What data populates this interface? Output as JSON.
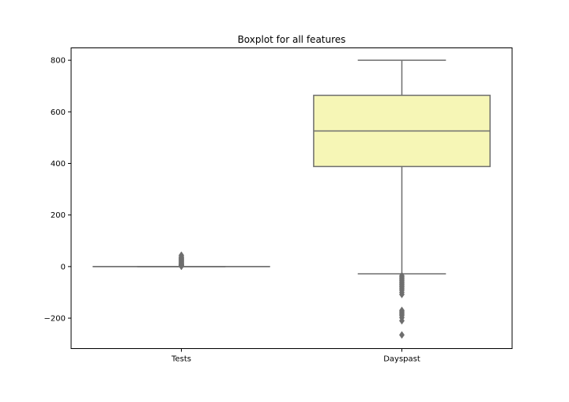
{
  "chart_data": {
    "type": "boxplot",
    "title": "Boxplot for all features",
    "xlabel": "",
    "ylabel": "",
    "categories": [
      "Tests",
      "Dayspast"
    ],
    "ylim": [
      -318,
      848
    ],
    "y_ticks": [
      -200,
      0,
      200,
      400,
      600,
      800
    ],
    "y_tick_labels": [
      "−200",
      "0",
      "200",
      "400",
      "600",
      "800"
    ],
    "grid": false,
    "boxes": [
      {
        "category": "Tests",
        "color": "#fbb4ae",
        "whisker_low": 0,
        "q1": 0,
        "median": 0,
        "q3": 0,
        "whisker_high": 0,
        "outliers": [
          1,
          2,
          3,
          4,
          5,
          6,
          7,
          8,
          9,
          10,
          12,
          14,
          16,
          18,
          20,
          22,
          24,
          26,
          28,
          30,
          32,
          34,
          36,
          40,
          44
        ]
      },
      {
        "category": "Dayspast",
        "color": "#f6f6b6",
        "whisker_low": -28,
        "q1": 388,
        "median": 526,
        "q3": 664,
        "whisker_high": 800,
        "outliers": [
          -35,
          -40,
          -45,
          -50,
          -55,
          -60,
          -65,
          -70,
          -75,
          -80,
          -86,
          -92,
          -100,
          -108,
          -170,
          -175,
          -180,
          -185,
          -190,
          -198,
          -210,
          -265
        ]
      }
    ],
    "line_color": "#6e6e6e",
    "outlier_color": "#6e6e6e"
  }
}
